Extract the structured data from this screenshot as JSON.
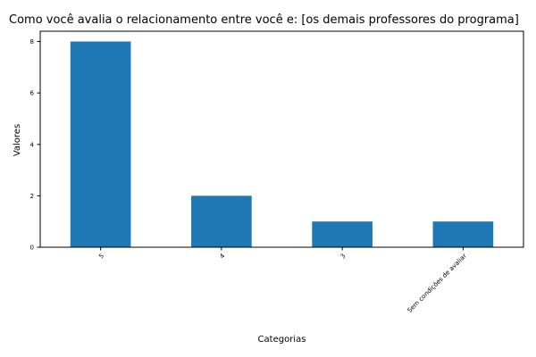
{
  "chart_data": {
    "type": "bar",
    "title": "Como você avalia o relacionamento entre você e: [os demais professores do programa]",
    "xlabel": "Categorias",
    "ylabel": "Valores",
    "categories": [
      "5",
      "4",
      "3",
      "Sem condições de avaliar"
    ],
    "values": [
      8,
      2,
      1,
      1
    ],
    "yticks": [
      "0",
      "2",
      "4",
      "6",
      "8"
    ],
    "ylim": [
      0,
      8.4
    ],
    "grid": false,
    "legend": "none",
    "bar_color": "#1f77b4"
  }
}
